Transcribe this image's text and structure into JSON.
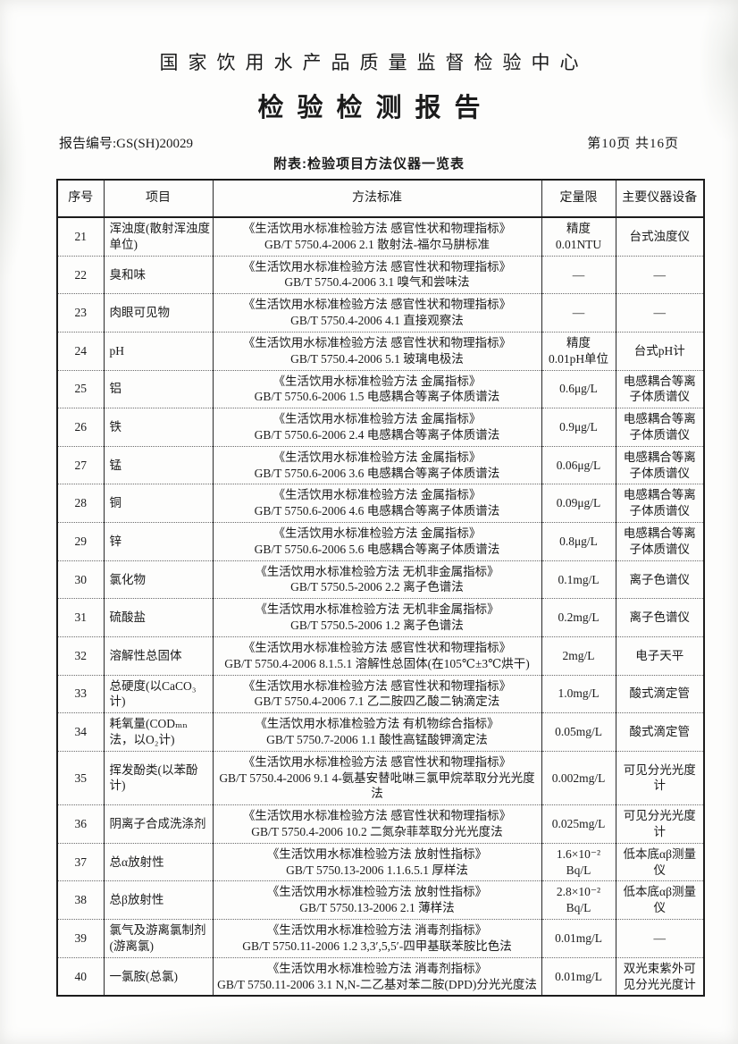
{
  "header": {
    "org_title": "国家饮用水产品质量监督检验中心",
    "report_title": "检验检测报告",
    "report_no_label": "报告编号:",
    "report_no": "GS(SH)20029",
    "page_info": "第10页 共16页",
    "table_caption": "附表:检验项目方法仪器一览表"
  },
  "table": {
    "columns": [
      "序号",
      "项目",
      "方法标准",
      "定量限",
      "主要仪器设备"
    ],
    "rows": [
      {
        "no": "21",
        "item": "浑浊度(散射浑浊度单位)",
        "std": "《生活饮用水标准检验方法 感官性状和物理指标》",
        "ref": "GB/T 5750.4-2006 2.1 散射法-福尔马肼标准",
        "limit": "精度\n0.01NTU",
        "instrument": "台式浊度仪"
      },
      {
        "no": "22",
        "item": "臭和味",
        "std": "《生活饮用水标准检验方法 感官性状和物理指标》",
        "ref": "GB/T 5750.4-2006 3.1 嗅气和尝味法",
        "limit": "—",
        "instrument": "—"
      },
      {
        "no": "23",
        "item": "肉眼可见物",
        "std": "《生活饮用水标准检验方法 感官性状和物理指标》",
        "ref": "GB/T 5750.4-2006 4.1 直接观察法",
        "limit": "—",
        "instrument": "—"
      },
      {
        "no": "24",
        "item": "pH",
        "std": "《生活饮用水标准检验方法 感官性状和物理指标》",
        "ref": "GB/T 5750.4-2006 5.1 玻璃电极法",
        "limit": "精度\n0.01pH单位",
        "instrument": "台式pH计"
      },
      {
        "no": "25",
        "item": "铝",
        "std": "《生活饮用水标准检验方法 金属指标》",
        "ref": "GB/T 5750.6-2006 1.5 电感耦合等离子体质谱法",
        "limit": "0.6μg/L",
        "instrument": "电感耦合等离子体质谱仪"
      },
      {
        "no": "26",
        "item": "铁",
        "std": "《生活饮用水标准检验方法 金属指标》",
        "ref": "GB/T 5750.6-2006 2.4 电感耦合等离子体质谱法",
        "limit": "0.9μg/L",
        "instrument": "电感耦合等离子体质谱仪"
      },
      {
        "no": "27",
        "item": "锰",
        "std": "《生活饮用水标准检验方法 金属指标》",
        "ref": "GB/T 5750.6-2006 3.6 电感耦合等离子体质谱法",
        "limit": "0.06μg/L",
        "instrument": "电感耦合等离子体质谱仪"
      },
      {
        "no": "28",
        "item": "铜",
        "std": "《生活饮用水标准检验方法 金属指标》",
        "ref": "GB/T 5750.6-2006 4.6 电感耦合等离子体质谱法",
        "limit": "0.09μg/L",
        "instrument": "电感耦合等离子体质谱仪"
      },
      {
        "no": "29",
        "item": "锌",
        "std": "《生活饮用水标准检验方法 金属指标》",
        "ref": "GB/T 5750.6-2006 5.6 电感耦合等离子体质谱法",
        "limit": "0.8μg/L",
        "instrument": "电感耦合等离子体质谱仪"
      },
      {
        "no": "30",
        "item": "氯化物",
        "std": "《生活饮用水标准检验方法 无机非金属指标》",
        "ref": "GB/T 5750.5-2006 2.2 离子色谱法",
        "limit": "0.1mg/L",
        "instrument": "离子色谱仪"
      },
      {
        "no": "31",
        "item": "硫酸盐",
        "std": "《生活饮用水标准检验方法 无机非金属指标》",
        "ref": "GB/T 5750.5-2006 1.2 离子色谱法",
        "limit": "0.2mg/L",
        "instrument": "离子色谱仪"
      },
      {
        "no": "32",
        "item": "溶解性总固体",
        "std": "《生活饮用水标准检验方法 感官性状和物理指标》",
        "ref": "GB/T 5750.4-2006 8.1.5.1 溶解性总固体(在105℃±3℃烘干)",
        "limit": "2mg/L",
        "instrument": "电子天平"
      },
      {
        "no": "33",
        "item": "总硬度(以CaCO₃计)",
        "std": "《生活饮用水标准检验方法 感官性状和物理指标》",
        "ref": "GB/T 5750.4-2006 7.1 乙二胺四乙酸二钠滴定法",
        "limit": "1.0mg/L",
        "instrument": "酸式滴定管"
      },
      {
        "no": "34",
        "item": "耗氧量(CODₘₙ法，以O₂计)",
        "std": "《生活饮用水标准检验方法 有机物综合指标》",
        "ref": "GB/T 5750.7-2006 1.1 酸性高锰酸钾滴定法",
        "limit": "0.05mg/L",
        "instrument": "酸式滴定管"
      },
      {
        "no": "35",
        "item": "挥发酚类(以苯酚计)",
        "std": "《生活饮用水标准检验方法 感官性状和物理指标》",
        "ref": "GB/T 5750.4-2006 9.1 4-氨基安替吡啉三氯甲烷萃取分光光度法",
        "limit": "0.002mg/L",
        "instrument": "可见分光光度计"
      },
      {
        "no": "36",
        "item": "阴离子合成洗涤剂",
        "std": "《生活饮用水标准检验方法 感官性状和物理指标》",
        "ref": "GB/T 5750.4-2006 10.2 二氮杂菲萃取分光光度法",
        "limit": "0.025mg/L",
        "instrument": "可见分光光度计"
      },
      {
        "no": "37",
        "item": "总α放射性",
        "std": "《生活饮用水标准检验方法 放射性指标》",
        "ref": "GB/T 5750.13-2006 1.1.6.5.1 厚样法",
        "limit": "1.6×10⁻²\nBq/L",
        "instrument": "低本底αβ测量仪"
      },
      {
        "no": "38",
        "item": "总β放射性",
        "std": "《生活饮用水标准检验方法 放射性指标》",
        "ref": "GB/T 5750.13-2006 2.1 薄样法",
        "limit": "2.8×10⁻²\nBq/L",
        "instrument": "低本底αβ测量仪"
      },
      {
        "no": "39",
        "item": "氯气及游离氯制剂(游离氯)",
        "std": "《生活饮用水标准检验方法 消毒剂指标》",
        "ref": "GB/T 5750.11-2006 1.2 3,3′,5,5′-四甲基联苯胺比色法",
        "limit": "0.01mg/L",
        "instrument": "—"
      },
      {
        "no": "40",
        "item": "一氯胺(总氯)",
        "std": "《生活饮用水标准检验方法 消毒剂指标》",
        "ref": "GB/T 5750.11-2006 3.1 N,N-二乙基对苯二胺(DPD)分光光度法",
        "limit": "0.01mg/L",
        "instrument": "双光束紫外可见分光光度计"
      }
    ]
  }
}
